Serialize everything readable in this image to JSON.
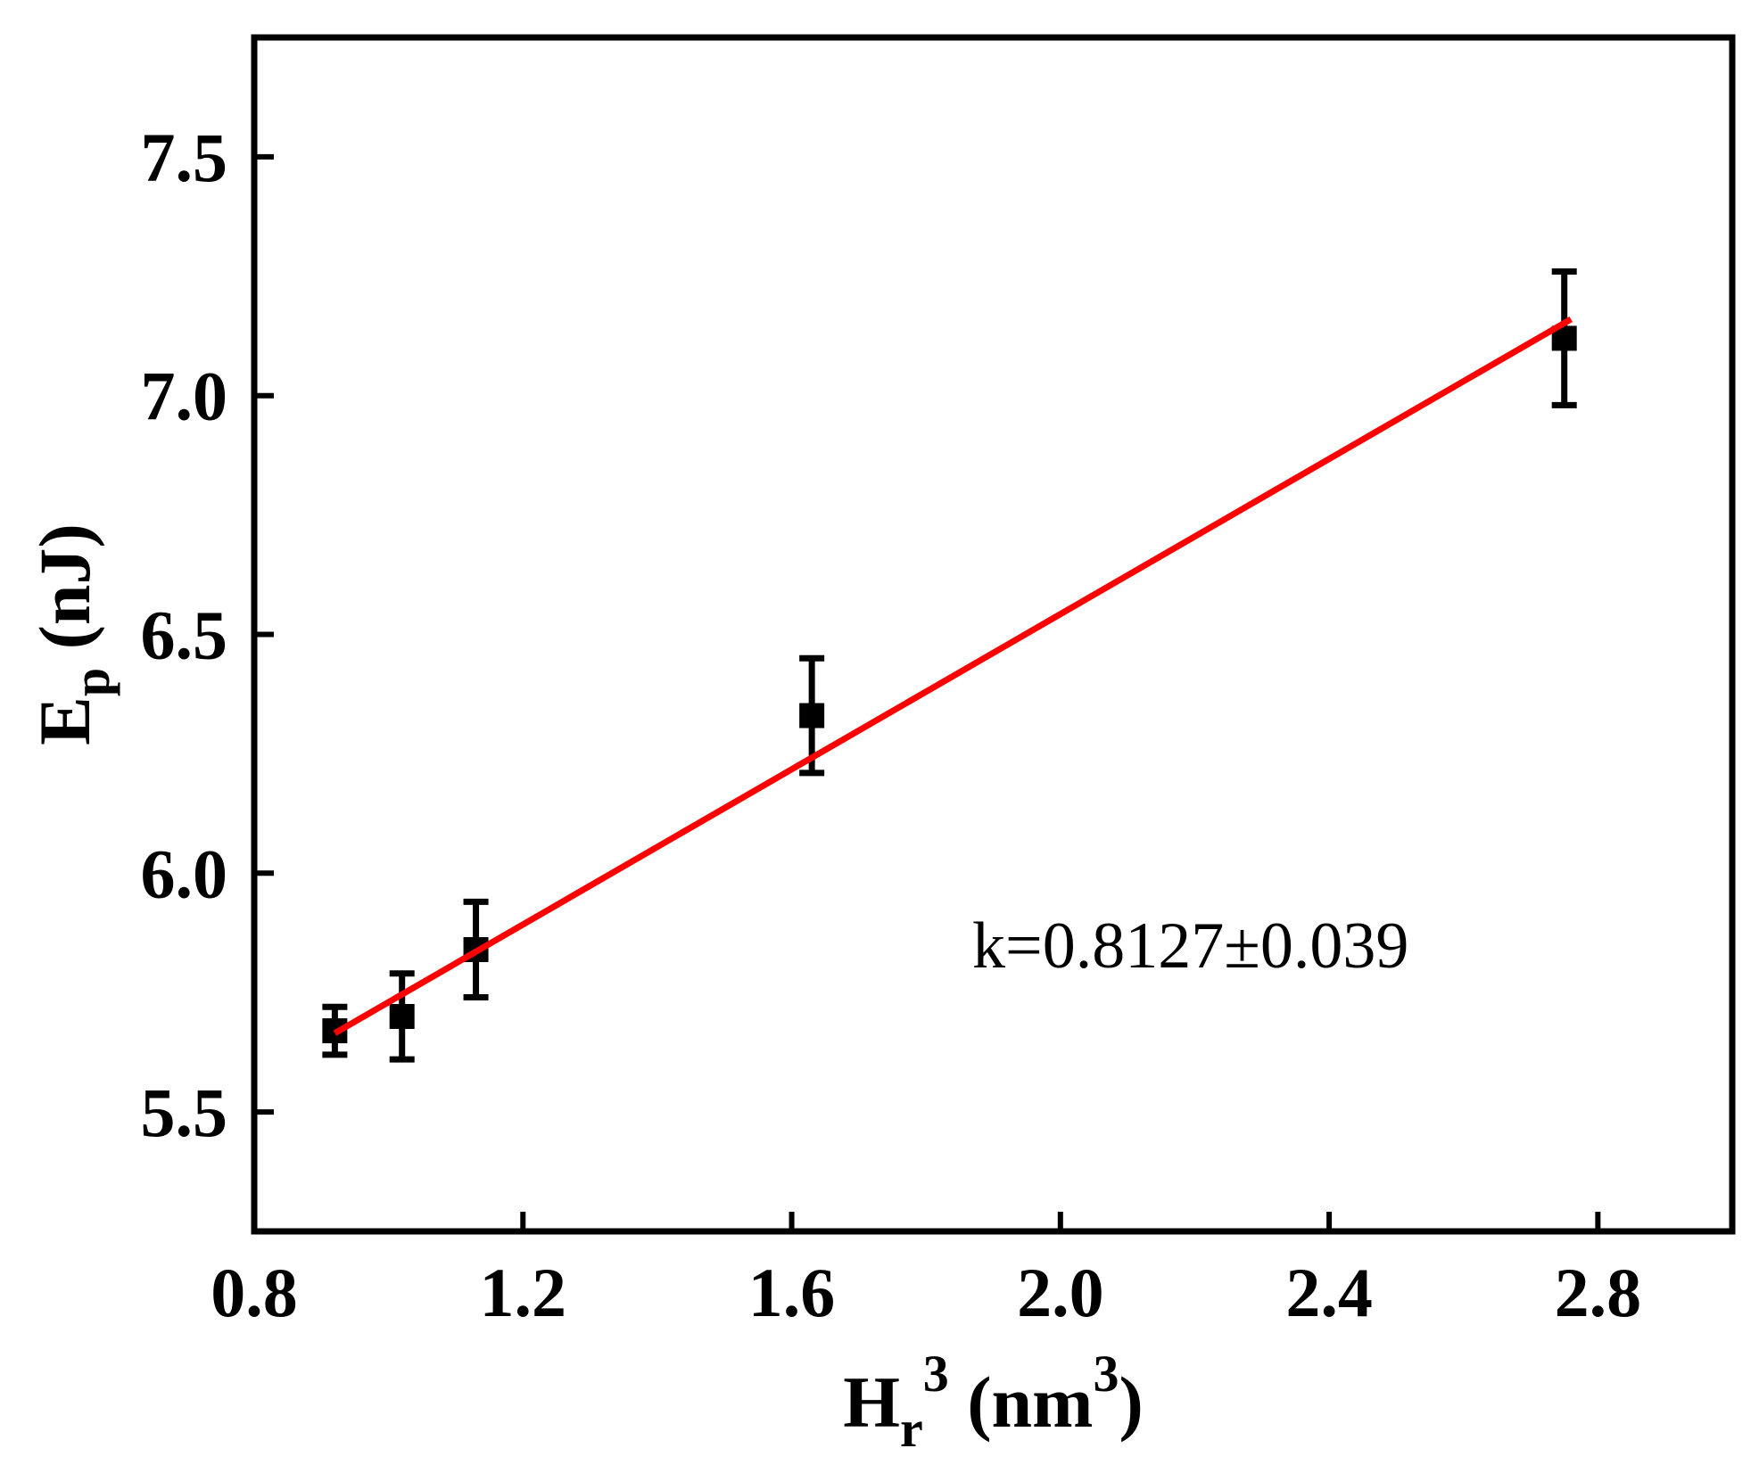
{
  "chart_data": {
    "type": "scatter",
    "xlabel": [
      {
        "text": "H"
      },
      {
        "text": "r",
        "shift": "sub"
      },
      {
        "text": "3",
        "shift": "sup"
      },
      {
        "text": " (nm"
      },
      {
        "text": "3",
        "shift": "sup"
      },
      {
        "text": ")"
      }
    ],
    "ylabel": [
      {
        "text": "E"
      },
      {
        "text": "p",
        "shift": "sub"
      },
      {
        "text": " (nJ)"
      }
    ],
    "annotation": "k=0.8127±0.039",
    "xlim": [
      0.8,
      3.0
    ],
    "ylim": [
      5.25,
      7.75
    ],
    "xticks": [
      0.8,
      1.2,
      1.6,
      {
        "value": 2,
        "label": "2.0"
      },
      2.4,
      2.8
    ],
    "yticks": [
      5.5,
      {
        "value": 6,
        "label": "6.0"
      },
      6.5,
      {
        "value": 7,
        "label": "7.0"
      },
      7.5
    ],
    "series": [
      {
        "x": [
          0.92,
          1.02,
          1.13,
          1.63,
          2.75
        ],
        "values": [
          5.67,
          5.7,
          5.84,
          6.33,
          7.12
        ],
        "errors": [
          0.05,
          0.09,
          0.1,
          0.12,
          0.14
        ],
        "color": "#000000"
      },
      {
        "kind": "line",
        "x": [
          0.92,
          2.76
        ],
        "values": [
          5.665,
          7.16
        ],
        "color": "#ff0000"
      }
    ]
  }
}
